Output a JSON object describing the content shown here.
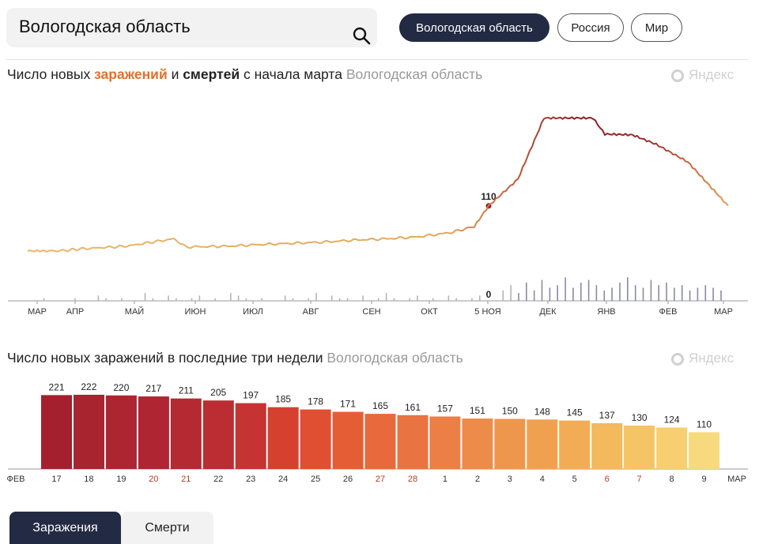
{
  "search": {
    "value": "Вологодская область"
  },
  "region_pills": [
    {
      "label": "Вологодская область",
      "active": true
    },
    {
      "label": "Россия",
      "active": false
    },
    {
      "label": "Мир",
      "active": false
    }
  ],
  "brand": {
    "label": "Яндекс"
  },
  "chart1": {
    "title_prefix": "Число новых ",
    "title_infections": "заражений",
    "title_and": " и ",
    "title_deaths": "смертей",
    "title_suffix": " с начала марта",
    "region": "Вологодская область"
  },
  "chart2": {
    "title": "Число новых заражений в последние три недели",
    "region": "Вологодская область"
  },
  "tabs": [
    {
      "label": "Заражения",
      "active": true
    },
    {
      "label": "Смерти",
      "active": false
    }
  ],
  "colors": {
    "accent_dark": "#232a43",
    "infections_orange": "#e0702d",
    "line_light": "#e8b86a",
    "line_dark": "#8c1c26",
    "weekend": "#c0392b"
  },
  "chart_data": [
    {
      "type": "line",
      "title": "Число новых заражений и смертей с начала марта",
      "x_tick_labels": [
        "МАР",
        "АПР",
        "МАЙ",
        "ИЮН",
        "ИЮЛ",
        "АВГ",
        "СЕН",
        "ОКТ",
        "5 НОЯ",
        "ДЕК",
        "ЯНВ",
        "ФЕВ",
        "МАР"
      ],
      "highlight_date": "5 НОЯ",
      "series": [
        {
          "key": "infections",
          "points": [
            [
              "МАР",
              0
            ],
            [
              "АПР",
              1
            ],
            [
              "АПР+",
              5
            ],
            [
              "МАЙ",
              12
            ],
            [
              "МАЙ+",
              30
            ],
            [
              "ИЮН",
              10
            ],
            [
              "ИЮН+",
              12
            ],
            [
              "ИЮЛ",
              16
            ],
            [
              "ИЮЛ+",
              19
            ],
            [
              "АВГ",
              22
            ],
            [
              "АВГ+",
              27
            ],
            [
              "СЕН",
              30
            ],
            [
              "СЕН+",
              35
            ],
            [
              "ОКТ",
              45
            ],
            [
              "ОКТ+",
              60
            ],
            [
              "5 НОЯ",
              110
            ],
            [
              "НОЯ+",
              175
            ],
            [
              "ДЕК",
              324
            ],
            [
              "ДЕК+",
              324
            ],
            [
              "ЯНВ",
              285
            ],
            [
              "ЯНВ+",
              283
            ],
            [
              "ФЕВ",
              260
            ],
            [
              "ФЕВ+",
              217
            ],
            [
              "МАР",
              110
            ]
          ],
          "labels": [
            {
              "x": "5 НОЯ",
              "value": "110"
            }
          ]
        },
        {
          "key": "deaths",
          "bar_heights_relative": [
            0,
            0,
            1,
            0,
            0,
            0,
            1,
            0,
            0,
            2,
            1,
            0,
            1,
            0,
            0,
            3,
            1,
            0,
            2,
            1,
            0,
            1,
            2,
            0,
            1,
            0,
            3,
            2,
            1,
            0,
            1,
            0,
            0,
            2,
            1,
            0,
            1,
            3,
            0,
            2,
            1,
            1,
            0,
            2,
            0,
            1,
            3,
            1,
            0,
            1,
            2,
            0,
            1,
            0,
            2,
            1,
            0,
            1,
            2,
            0,
            0,
            4,
            6,
            3,
            7,
            4,
            8,
            5,
            6,
            9,
            5,
            7,
            8,
            6,
            4,
            5,
            7,
            9,
            6,
            5,
            8,
            6,
            7,
            5,
            6,
            4,
            5,
            6,
            5,
            4
          ],
          "labels": [
            {
              "x": "5 НОЯ",
              "value": "0"
            }
          ]
        }
      ]
    },
    {
      "type": "bar",
      "title": "Число новых заражений в последние три недели",
      "categories": [
        "17",
        "18",
        "19",
        "20",
        "21",
        "22",
        "23",
        "24",
        "25",
        "26",
        "27",
        "28",
        "1",
        "2",
        "3",
        "4",
        "5",
        "6",
        "7",
        "8",
        "9"
      ],
      "values": [
        221,
        222,
        220,
        217,
        211,
        205,
        197,
        185,
        178,
        171,
        165,
        161,
        157,
        151,
        150,
        148,
        145,
        137,
        130,
        124,
        110
      ],
      "weekend_categories": [
        "20",
        "21",
        "27",
        "28",
        "6",
        "7"
      ],
      "axis_start_label": "ФЕВ",
      "axis_end_label": "МАР",
      "ylim": [
        0,
        222
      ]
    }
  ]
}
